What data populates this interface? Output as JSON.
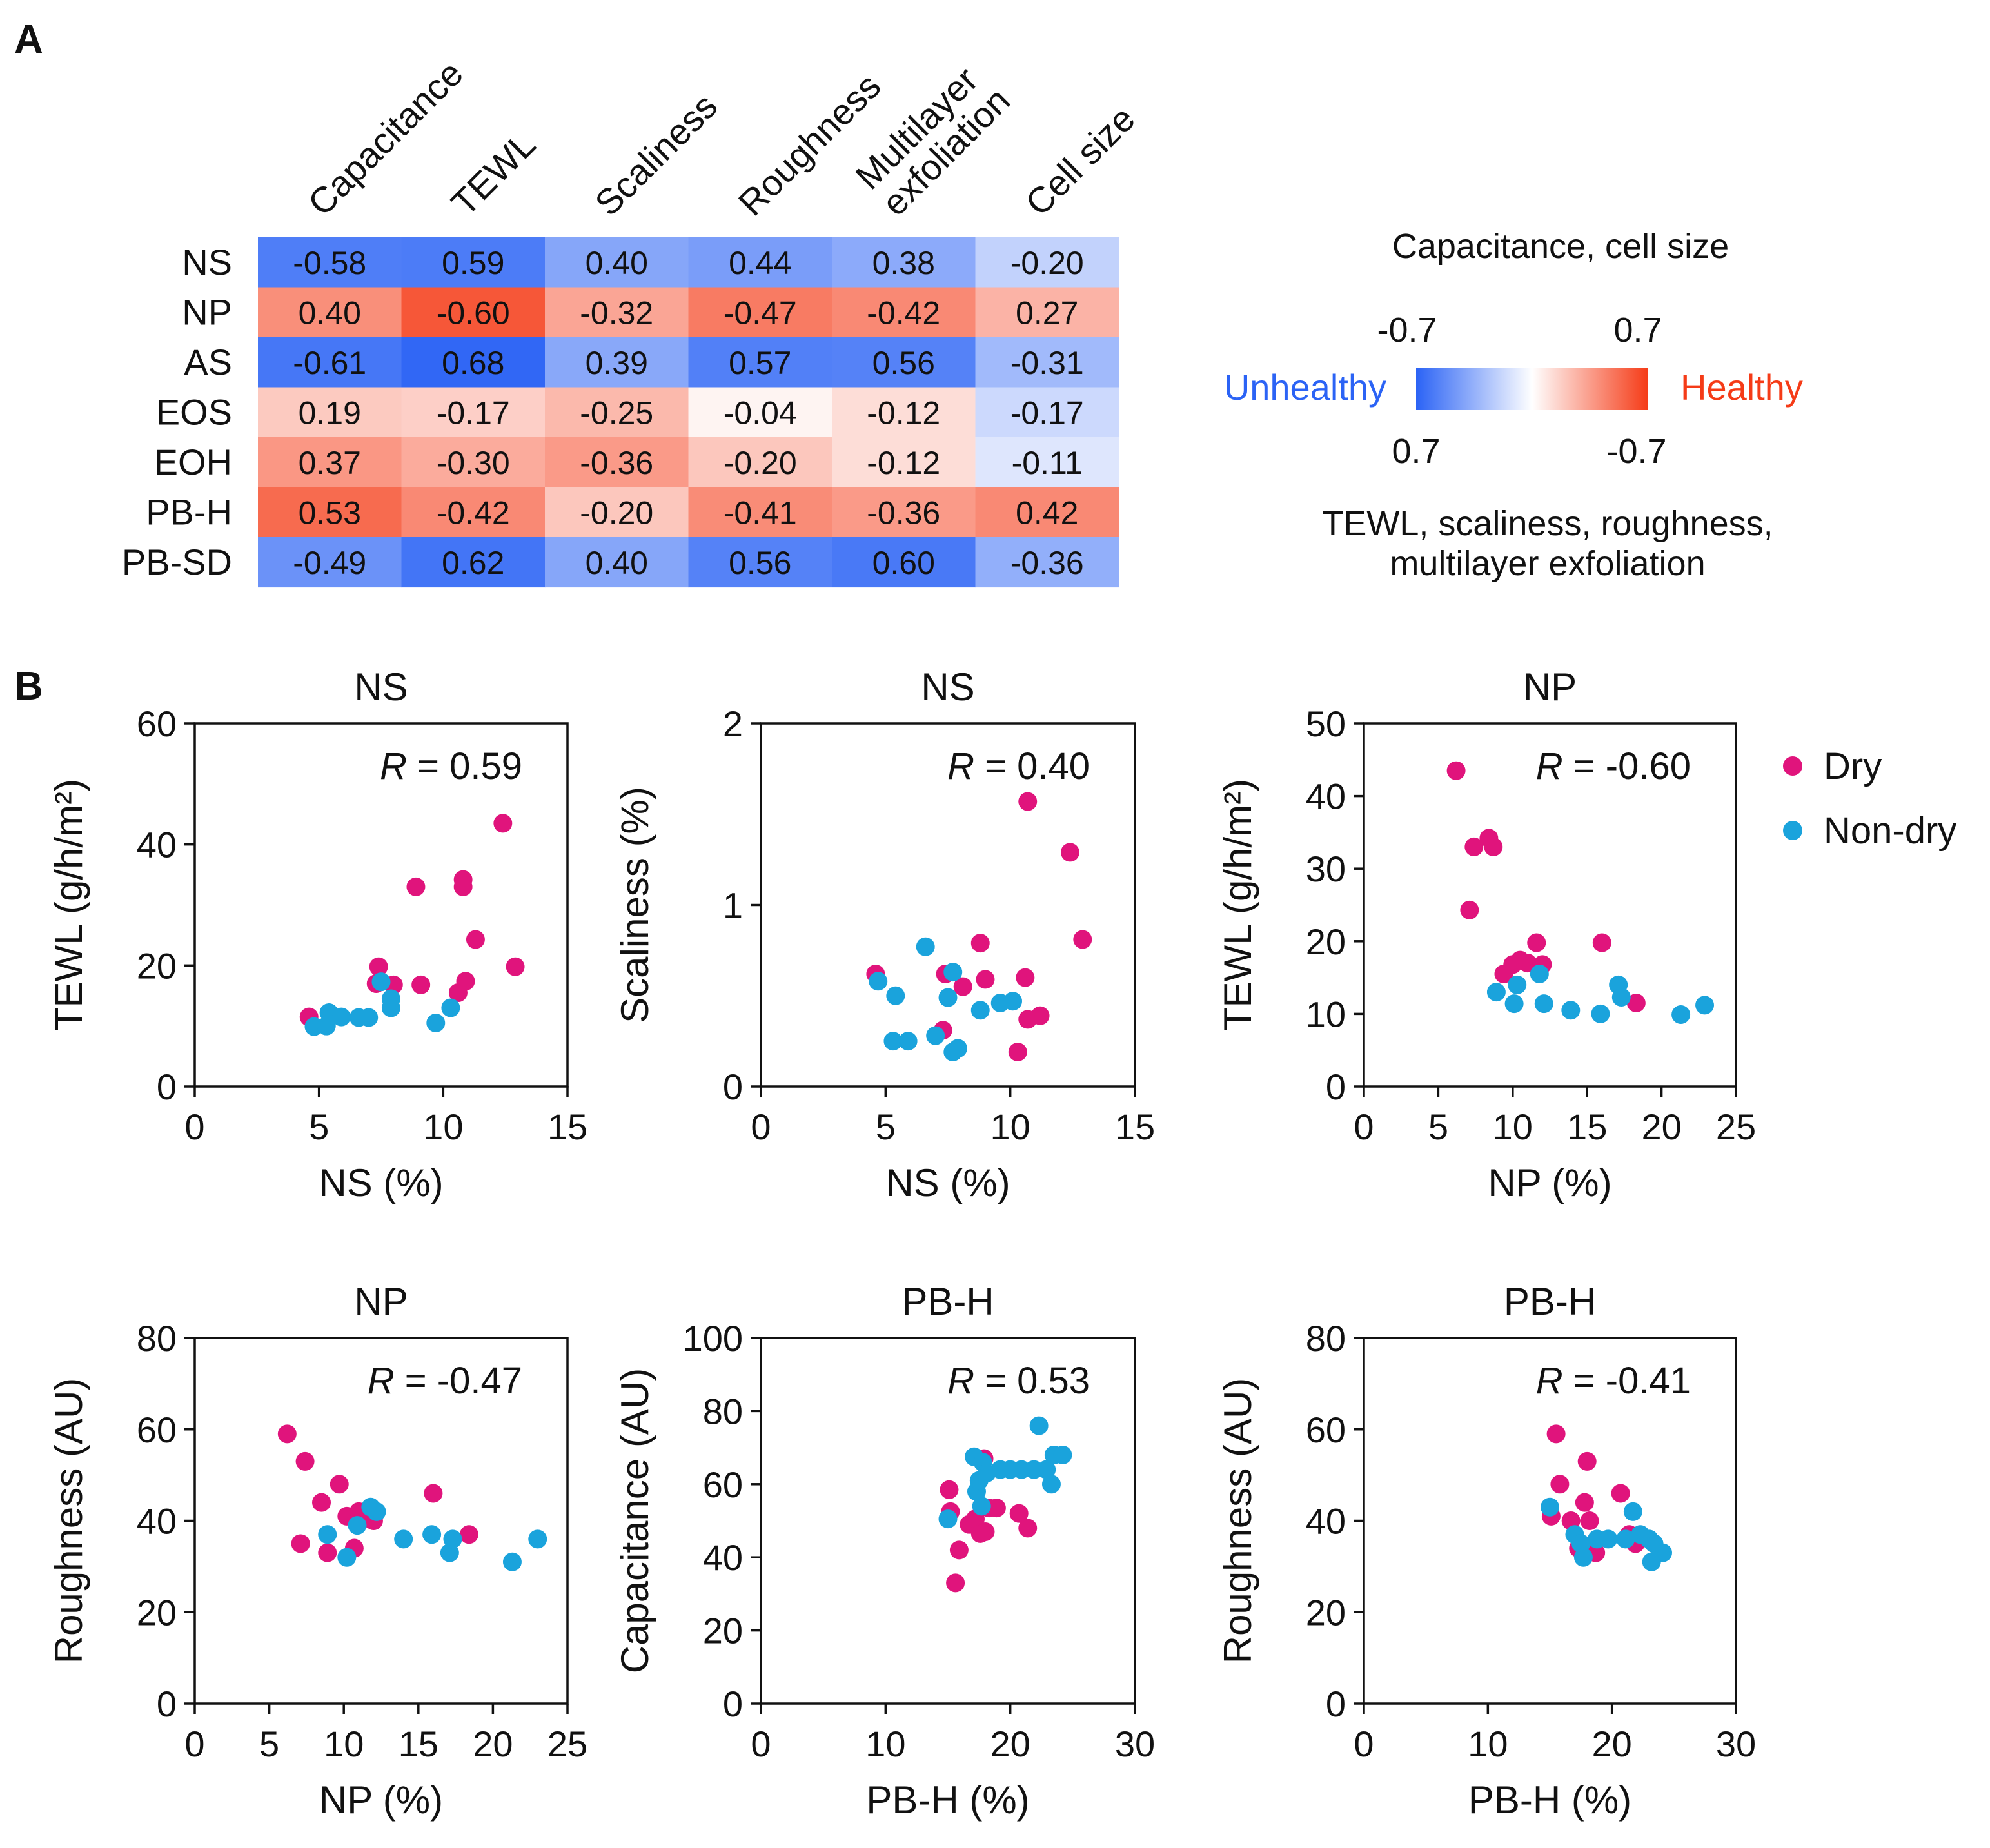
{
  "panel_a": {
    "label": "A",
    "columns": [
      "Capacitance",
      "TEWL",
      "Scaliness",
      "Roughness",
      "Multilayer exfoliation",
      "Cell size"
    ],
    "rows": [
      "NS",
      "NP",
      "AS",
      "EOS",
      "EOH",
      "PB-H",
      "PB-SD"
    ],
    "values": [
      [
        "-0.58",
        "0.59",
        "0.40",
        "0.44",
        "0.38",
        "-0.20"
      ],
      [
        "0.40",
        "-0.60",
        "-0.32",
        "-0.47",
        "-0.42",
        "0.27"
      ],
      [
        "-0.61",
        "0.68",
        "0.39",
        "0.57",
        "0.56",
        "-0.31"
      ],
      [
        "0.19",
        "-0.17",
        "-0.25",
        "-0.04",
        "-0.12",
        "-0.17"
      ],
      [
        "0.37",
        "-0.30",
        "-0.36",
        "-0.20",
        "-0.12",
        "-0.11"
      ],
      [
        "0.53",
        "-0.42",
        "-0.20",
        "-0.41",
        "-0.36",
        "0.42"
      ],
      [
        "-0.49",
        "0.62",
        "0.40",
        "0.56",
        "0.60",
        "-0.36"
      ]
    ],
    "healthiness": [
      [
        -0.58,
        -0.59,
        -0.4,
        -0.44,
        -0.38,
        -0.2
      ],
      [
        0.4,
        0.6,
        0.32,
        0.47,
        0.42,
        0.27
      ],
      [
        -0.61,
        -0.68,
        -0.39,
        -0.57,
        -0.56,
        -0.31
      ],
      [
        0.19,
        0.17,
        0.25,
        0.04,
        0.12,
        -0.17
      ],
      [
        0.37,
        0.3,
        0.36,
        0.2,
        0.12,
        -0.11
      ],
      [
        0.53,
        0.42,
        0.2,
        0.41,
        0.36,
        0.42
      ],
      [
        -0.49,
        -0.62,
        -0.4,
        -0.56,
        -0.6,
        -0.36
      ]
    ],
    "colorbar": {
      "title_top": "Capacitance, cell size",
      "top_min": "-0.7",
      "top_max": "0.7",
      "bottom_min": "0.7",
      "bottom_max": "-0.7",
      "label_left": "Unhealthy",
      "label_right": "Healthy",
      "title_bottom": "TEWL, scaliness, roughness, multilayer exfoliation",
      "color_left": "#2b63f5",
      "color_mid": "#ffffff",
      "color_right": "#f53b17"
    }
  },
  "panel_b": {
    "label": "B",
    "legend": [
      {
        "label": "Dry",
        "color": "#e0147c"
      },
      {
        "label": "Non-dry",
        "color": "#1aa3dc"
      }
    ]
  },
  "chart_data": [
    {
      "type": "heatmap",
      "title": "",
      "x": [
        "Capacitance",
        "TEWL",
        "Scaliness",
        "Roughness",
        "Multilayer exfoliation",
        "Cell size"
      ],
      "y": [
        "NS",
        "NP",
        "AS",
        "EOS",
        "EOH",
        "PB-H",
        "PB-SD"
      ],
      "values": [
        [
          -0.58,
          0.59,
          0.4,
          0.44,
          0.38,
          -0.2
        ],
        [
          0.4,
          -0.6,
          -0.32,
          -0.47,
          -0.42,
          0.27
        ],
        [
          -0.61,
          0.68,
          0.39,
          0.57,
          0.56,
          -0.31
        ],
        [
          0.19,
          -0.17,
          -0.25,
          -0.04,
          -0.12,
          -0.17
        ],
        [
          0.37,
          -0.3,
          -0.36,
          -0.2,
          -0.12,
          -0.11
        ],
        [
          0.53,
          -0.42,
          -0.2,
          -0.41,
          -0.36,
          0.42
        ],
        [
          -0.49,
          0.62,
          0.4,
          0.56,
          0.6,
          -0.36
        ]
      ],
      "range": [
        -0.7,
        0.7
      ]
    },
    {
      "type": "scatter",
      "title": "NS",
      "xlabel": "NS (%)",
      "ylabel": "TEWL (g/h/m²)",
      "annotation": "= 0.59",
      "xlim": [
        0,
        15
      ],
      "ylim": [
        0,
        60
      ],
      "xticks": [
        "0",
        "5",
        "10",
        "15"
      ],
      "yticks": [
        "0",
        "20",
        "40",
        "60"
      ],
      "series": [
        {
          "name": "Dry",
          "points": [
            [
              4.6,
              11.5
            ],
            [
              7.4,
              19.8
            ],
            [
              7.3,
              17
            ],
            [
              8.0,
              16.8
            ],
            [
              8.9,
              33
            ],
            [
              9.1,
              16.8
            ],
            [
              10.8,
              34.2
            ],
            [
              10.8,
              33
            ],
            [
              10.6,
              15.5
            ],
            [
              10.9,
              17.4
            ],
            [
              11.3,
              24.3
            ],
            [
              12.4,
              43.5
            ],
            [
              12.9,
              19.8
            ]
          ]
        },
        {
          "name": "Non-dry",
          "points": [
            [
              4.8,
              9.9
            ],
            [
              5.3,
              10
            ],
            [
              5.4,
              12.2
            ],
            [
              5.9,
              11.5
            ],
            [
              6.6,
              11.4
            ],
            [
              7.0,
              11.4
            ],
            [
              7.5,
              17.3
            ],
            [
              7.9,
              13
            ],
            [
              7.9,
              14.5
            ],
            [
              9.7,
              10.5
            ],
            [
              10.3,
              13
            ]
          ]
        }
      ]
    },
    {
      "type": "scatter",
      "title": "NS",
      "xlabel": "NS (%)",
      "ylabel": "Scaliness (%)",
      "annotation": "= 0.40",
      "xlim": [
        0,
        15
      ],
      "ylim": [
        0,
        2
      ],
      "xticks": [
        "0",
        "5",
        "10",
        "15"
      ],
      "yticks": [
        "0",
        "1",
        "2"
      ],
      "series": [
        {
          "name": "Dry",
          "points": [
            [
              4.6,
              0.62
            ],
            [
              7.3,
              0.31
            ],
            [
              7.4,
              0.62
            ],
            [
              8.1,
              0.55
            ],
            [
              8.8,
              0.79
            ],
            [
              9.0,
              0.59
            ],
            [
              10.3,
              0.19
            ],
            [
              10.6,
              0.6
            ],
            [
              10.7,
              0.37
            ],
            [
              10.7,
              1.57
            ],
            [
              11.2,
              0.39
            ],
            [
              12.4,
              1.29
            ],
            [
              12.9,
              0.81
            ]
          ]
        },
        {
          "name": "Non-dry",
          "points": [
            [
              4.7,
              0.58
            ],
            [
              5.3,
              0.25
            ],
            [
              5.4,
              0.5
            ],
            [
              5.9,
              0.25
            ],
            [
              6.6,
              0.77
            ],
            [
              7.0,
              0.28
            ],
            [
              7.5,
              0.49
            ],
            [
              7.7,
              0.19
            ],
            [
              7.9,
              0.21
            ],
            [
              7.7,
              0.63
            ],
            [
              8.8,
              0.42
            ],
            [
              9.6,
              0.46
            ],
            [
              10.1,
              0.47
            ]
          ]
        }
      ]
    },
    {
      "type": "scatter",
      "title": "NP",
      "xlabel": "NP (%)",
      "ylabel": "TEWL (g/h/m²)",
      "annotation": "= -0.60",
      "xlim": [
        0,
        25
      ],
      "ylim": [
        0,
        50
      ],
      "xticks": [
        "0",
        "5",
        "10",
        "15",
        "20",
        "25"
      ],
      "yticks": [
        "0",
        "10",
        "20",
        "30",
        "40",
        "50"
      ],
      "series": [
        {
          "name": "Dry",
          "points": [
            [
              6.2,
              43.5
            ],
            [
              7.1,
              24.3
            ],
            [
              7.4,
              33
            ],
            [
              8.4,
              34.2
            ],
            [
              8.7,
              33
            ],
            [
              9.4,
              15.5
            ],
            [
              10.0,
              16.8
            ],
            [
              10.5,
              17.4
            ],
            [
              11.0,
              17
            ],
            [
              11.6,
              19.8
            ],
            [
              12.0,
              16.8
            ],
            [
              16.0,
              19.8
            ],
            [
              18.3,
              11.5
            ]
          ]
        },
        {
          "name": "Non-dry",
          "points": [
            [
              8.9,
              13
            ],
            [
              10.1,
              11.4
            ],
            [
              10.3,
              14
            ],
            [
              11.8,
              15.5
            ],
            [
              12.1,
              11.4
            ],
            [
              13.9,
              10.5
            ],
            [
              15.9,
              10
            ],
            [
              17.1,
              14
            ],
            [
              17.3,
              12.3
            ],
            [
              21.3,
              9.9
            ],
            [
              22.9,
              11.2
            ]
          ]
        }
      ]
    },
    {
      "type": "scatter",
      "title": "NP",
      "xlabel": "NP (%)",
      "ylabel": "Roughness (AU)",
      "annotation": "= -0.47",
      "xlim": [
        0,
        25
      ],
      "ylim": [
        0,
        80
      ],
      "xticks": [
        "0",
        "5",
        "10",
        "15",
        "20",
        "25"
      ],
      "yticks": [
        "0",
        "20",
        "40",
        "60",
        "80"
      ],
      "series": [
        {
          "name": "Dry",
          "points": [
            [
              6.2,
              59
            ],
            [
              7.1,
              35
            ],
            [
              7.4,
              53
            ],
            [
              8.5,
              44
            ],
            [
              8.9,
              33
            ],
            [
              9.7,
              48
            ],
            [
              10.2,
              41
            ],
            [
              10.7,
              34
            ],
            [
              11.0,
              42
            ],
            [
              11.7,
              40.5
            ],
            [
              12.0,
              40
            ],
            [
              16.0,
              46
            ],
            [
              18.4,
              37
            ]
          ]
        },
        {
          "name": "Non-dry",
          "points": [
            [
              8.9,
              37
            ],
            [
              10.2,
              32
            ],
            [
              10.9,
              39
            ],
            [
              11.8,
              43
            ],
            [
              12.2,
              42
            ],
            [
              14.0,
              36
            ],
            [
              15.9,
              37
            ],
            [
              17.1,
              33
            ],
            [
              17.3,
              36
            ],
            [
              21.3,
              31
            ],
            [
              23.0,
              36
            ]
          ]
        }
      ]
    },
    {
      "type": "scatter",
      "title": "PB-H",
      "xlabel": "PB-H (%)",
      "ylabel": "Capacitance (AU)",
      "annotation": "= 0.53",
      "xlim": [
        0,
        30
      ],
      "ylim": [
        0,
        100
      ],
      "xticks": [
        "0",
        "10",
        "20",
        "30"
      ],
      "yticks": [
        "0",
        "20",
        "40",
        "60",
        "80",
        "100"
      ],
      "series": [
        {
          "name": "Dry",
          "points": [
            [
              15.1,
              58.5
            ],
            [
              15.2,
              52.5
            ],
            [
              15.6,
              33
            ],
            [
              15.9,
              42
            ],
            [
              16.7,
              49
            ],
            [
              17.2,
              50.5
            ],
            [
              17.6,
              46.5
            ],
            [
              17.9,
              67
            ],
            [
              18.0,
              47
            ],
            [
              18.3,
              53.5
            ],
            [
              18.9,
              53.5
            ],
            [
              20.7,
              52
            ],
            [
              21.4,
              48
            ]
          ]
        },
        {
          "name": "Non-dry",
          "points": [
            [
              15.0,
              50.5
            ],
            [
              17.1,
              67.5
            ],
            [
              17.3,
              58
            ],
            [
              17.5,
              61
            ],
            [
              17.7,
              54
            ],
            [
              17.8,
              66
            ],
            [
              18.1,
              63
            ],
            [
              19.2,
              64
            ],
            [
              20.0,
              64
            ],
            [
              20.9,
              64
            ],
            [
              21.9,
              64
            ],
            [
              22.3,
              76
            ],
            [
              22.9,
              64
            ],
            [
              23.3,
              60
            ],
            [
              23.5,
              68
            ],
            [
              24.2,
              68
            ]
          ]
        }
      ]
    },
    {
      "type": "scatter",
      "title": "PB-H",
      "xlabel": "PB-H (%)",
      "ylabel": "Roughness (AU)",
      "annotation": "= -0.41",
      "xlim": [
        0,
        30
      ],
      "ylim": [
        0,
        80
      ],
      "xticks": [
        "0",
        "10",
        "20",
        "30"
      ],
      "yticks": [
        "0",
        "20",
        "40",
        "60",
        "80"
      ],
      "series": [
        {
          "name": "Dry",
          "points": [
            [
              15.1,
              41
            ],
            [
              15.5,
              59
            ],
            [
              15.8,
              48
            ],
            [
              16.7,
              40
            ],
            [
              17.3,
              34
            ],
            [
              17.8,
              44
            ],
            [
              17.9,
              33
            ],
            [
              18.0,
              53
            ],
            [
              18.2,
              40
            ],
            [
              18.7,
              33
            ],
            [
              20.7,
              46
            ],
            [
              21.4,
              37
            ],
            [
              21.9,
              35
            ]
          ]
        },
        {
          "name": "Non-dry",
          "points": [
            [
              15.0,
              43
            ],
            [
              17.0,
              37
            ],
            [
              17.5,
              35
            ],
            [
              17.7,
              32
            ],
            [
              18.8,
              36
            ],
            [
              19.7,
              36
            ],
            [
              21.1,
              36
            ],
            [
              21.7,
              42
            ],
            [
              22.3,
              37
            ],
            [
              23.0,
              36
            ],
            [
              23.2,
              31
            ],
            [
              23.4,
              35
            ],
            [
              24.1,
              33
            ]
          ]
        }
      ]
    }
  ]
}
